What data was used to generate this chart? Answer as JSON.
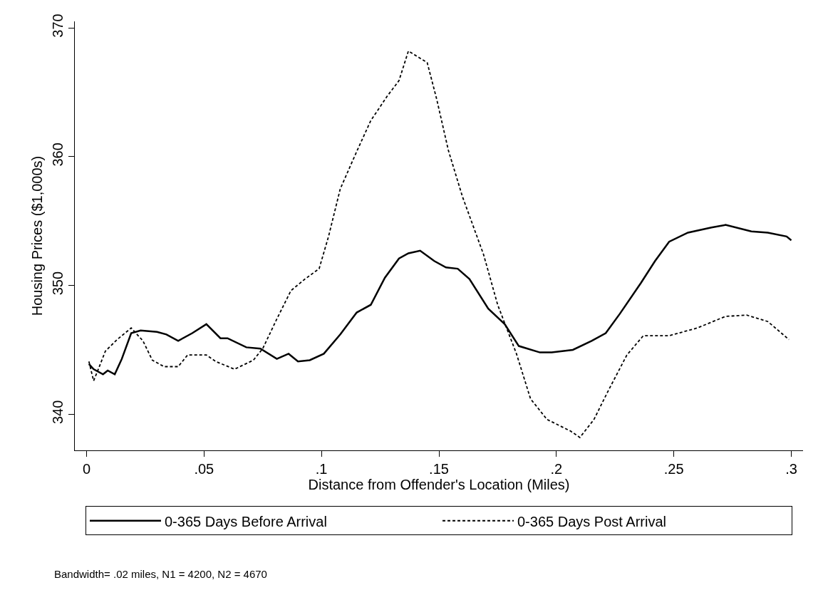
{
  "chart_data": {
    "type": "line",
    "xlabel": "Distance from Offender's Location (Miles)",
    "ylabel": "Housing Prices ($1,000s)",
    "xlim": [
      -0.005,
      0.305
    ],
    "ylim": [
      337.2,
      370.5
    ],
    "xticks": [
      {
        "value": 0,
        "label": "0"
      },
      {
        "value": 0.05,
        "label": ".05"
      },
      {
        "value": 0.1,
        "label": ".1"
      },
      {
        "value": 0.15,
        "label": ".15"
      },
      {
        "value": 0.2,
        "label": ".2"
      },
      {
        "value": 0.25,
        "label": ".25"
      },
      {
        "value": 0.3,
        "label": ".3"
      }
    ],
    "yticks": [
      340,
      350,
      360,
      370
    ],
    "legend": "bottom",
    "annotations": [
      "Bandwidth= .02 miles, N1 = 4200, N2 = 4670"
    ],
    "series": [
      {
        "name": "0-365 Days Before Arrival",
        "color": "#000000",
        "line_style": "solid",
        "x": [
          0.001,
          0.003,
          0.007,
          0.009,
          0.012,
          0.015,
          0.019,
          0.023,
          0.03,
          0.034,
          0.039,
          0.045,
          0.051,
          0.057,
          0.06,
          0.068,
          0.074,
          0.081,
          0.086,
          0.09,
          0.095,
          0.101,
          0.108,
          0.115,
          0.121,
          0.127,
          0.133,
          0.137,
          0.142,
          0.148,
          0.153,
          0.158,
          0.163,
          0.171,
          0.178,
          0.184,
          0.193,
          0.198,
          0.207,
          0.215,
          0.221,
          0.227,
          0.236,
          0.242,
          0.248,
          0.256,
          0.266,
          0.272,
          0.283,
          0.29,
          0.298,
          0.3
        ],
        "values": [
          343.9,
          343.5,
          343.1,
          343.4,
          343.1,
          344.3,
          346.3,
          346.5,
          346.4,
          346.2,
          345.7,
          346.3,
          347.0,
          345.9,
          345.9,
          345.2,
          345.1,
          344.3,
          344.7,
          344.1,
          344.2,
          344.7,
          346.2,
          347.9,
          348.5,
          350.6,
          352.1,
          352.5,
          352.7,
          351.9,
          351.4,
          351.3,
          350.5,
          348.2,
          347.0,
          345.3,
          344.8,
          344.8,
          345.0,
          345.7,
          346.3,
          347.8,
          350.2,
          351.9,
          353.4,
          354.1,
          354.5,
          354.7,
          354.2,
          354.1,
          353.8,
          353.5
        ]
      },
      {
        "name": "0-365 Days Post Arrival",
        "color": "#000000",
        "line_style": "dashed",
        "x": [
          0.001,
          0.003,
          0.005,
          0.008,
          0.013,
          0.019,
          0.024,
          0.028,
          0.033,
          0.039,
          0.043,
          0.051,
          0.055,
          0.063,
          0.071,
          0.075,
          0.081,
          0.087,
          0.093,
          0.099,
          0.103,
          0.108,
          0.115,
          0.121,
          0.128,
          0.133,
          0.137,
          0.145,
          0.149,
          0.154,
          0.16,
          0.169,
          0.175,
          0.183,
          0.189,
          0.196,
          0.206,
          0.21,
          0.216,
          0.222,
          0.23,
          0.237,
          0.248,
          0.26,
          0.272,
          0.281,
          0.29,
          0.299
        ],
        "values": [
          344.1,
          342.6,
          343.5,
          344.9,
          345.8,
          346.7,
          345.7,
          344.2,
          343.7,
          343.7,
          344.6,
          344.6,
          344.1,
          343.5,
          344.2,
          345.1,
          347.4,
          349.6,
          350.5,
          351.3,
          353.8,
          357.5,
          360.4,
          362.8,
          364.7,
          365.9,
          368.2,
          367.3,
          364.5,
          360.5,
          356.9,
          352.4,
          348.5,
          344.7,
          341.2,
          339.6,
          338.7,
          338.2,
          339.6,
          341.8,
          344.6,
          346.1,
          346.1,
          346.7,
          347.6,
          347.7,
          347.2,
          345.8
        ]
      }
    ]
  }
}
